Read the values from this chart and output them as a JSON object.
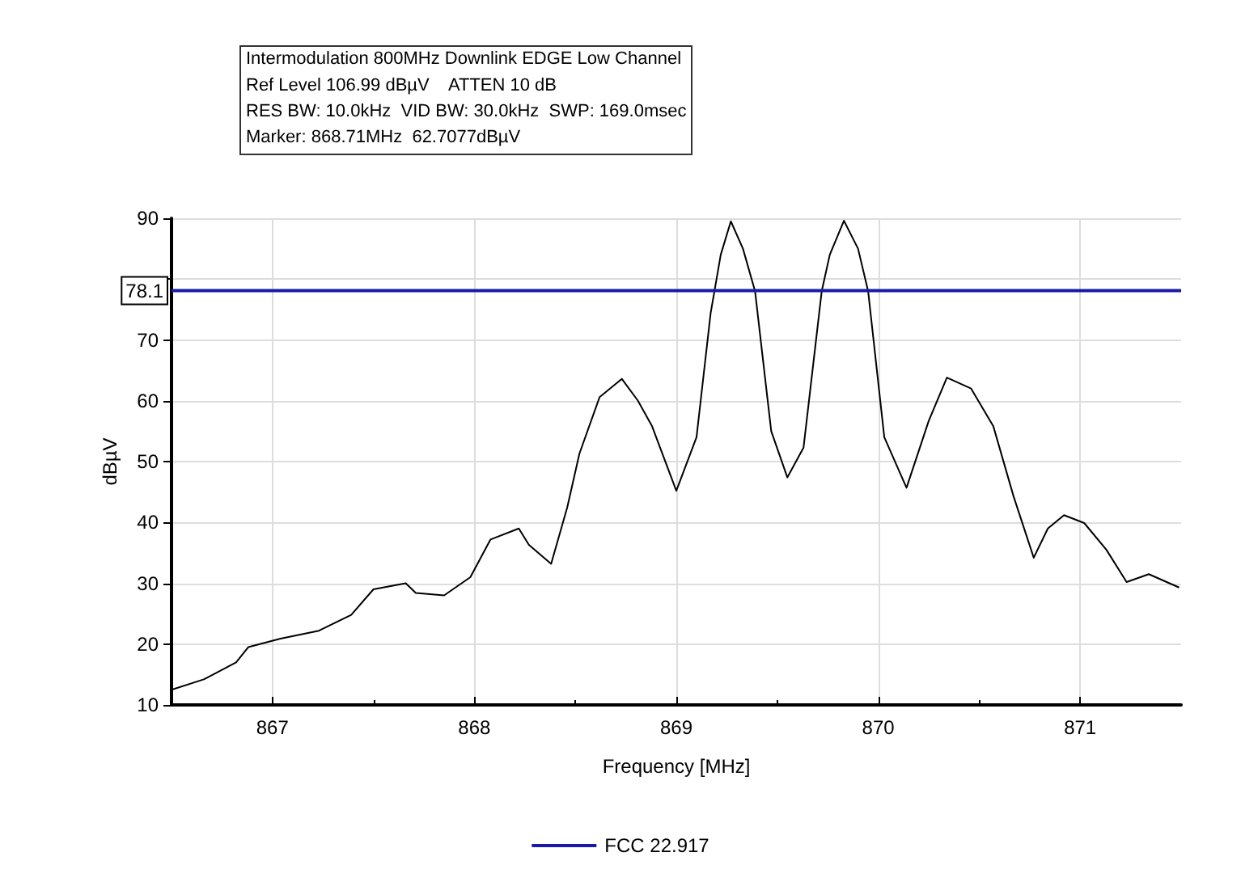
{
  "chart_data": {
    "type": "line",
    "title": "Intermodulation 800MHz Downlink EDGE Low Channel",
    "annotations": [
      "Ref Level 106.99 dBµV    ATTEN 10 dB",
      "RES BW: 10.0kHz  VID BW: 30.0kHz  SWP: 169.0msec",
      "Marker: 868.71MHz  62.7077dBµV",
      {
        "text": "78.1",
        "x": 866.5,
        "y": 78.1
      }
    ],
    "xlabel": "Frequency [MHz]",
    "ylabel": "dBµV",
    "xlim": [
      866.5,
      871.5
    ],
    "xticks": [
      867,
      868,
      869,
      870,
      871
    ],
    "ylim": [
      10,
      90
    ],
    "yticks": [
      10,
      20,
      30,
      40,
      50,
      60,
      70,
      {
        "value": 80,
        "label": null
      },
      90
    ],
    "grid": true,
    "legend": "bottom",
    "marker": "none",
    "line_style": "solid",
    "series": [
      {
        "color": "#000000",
        "x": [
          866.5,
          866.66,
          866.82,
          866.88,
          867.04,
          867.23,
          867.39,
          867.5,
          867.66,
          867.71,
          867.85,
          867.98,
          868.08,
          868.22,
          868.27,
          868.38,
          868.46,
          868.52,
          868.62,
          868.73,
          868.81,
          868.88,
          869.0,
          869.1,
          869.17,
          869.22,
          869.27,
          869.33,
          869.39,
          869.47,
          869.55,
          869.63,
          869.72,
          869.76,
          869.83,
          869.9,
          869.95,
          870.03,
          870.14,
          870.25,
          870.34,
          870.46,
          870.57,
          870.67,
          870.77,
          870.84,
          870.92,
          871.02,
          871.13,
          871.23,
          871.34,
          871.49
        ],
        "values": [
          12.5,
          14.2,
          17,
          19.5,
          20.9,
          22.2,
          24.8,
          29,
          30,
          28.4,
          28,
          31,
          37.2,
          39,
          36.3,
          33.2,
          42.5,
          51.3,
          60.6,
          63.6,
          60,
          55.8,
          45.2,
          54,
          74.4,
          84,
          89.5,
          85,
          78,
          55,
          47.4,
          52.3,
          78,
          84,
          89.6,
          85,
          78,
          54,
          45.7,
          56.7,
          63.8,
          62,
          55.8,
          44.3,
          34.2,
          39,
          41.2,
          39.9,
          35.5,
          30.2,
          31.5,
          29.3
        ]
      },
      {
        "name": "FCC 22.917",
        "color": "#1a1aa8",
        "x": [
          866.5,
          871.5
        ],
        "values": [
          78.1,
          78.1
        ]
      }
    ]
  }
}
